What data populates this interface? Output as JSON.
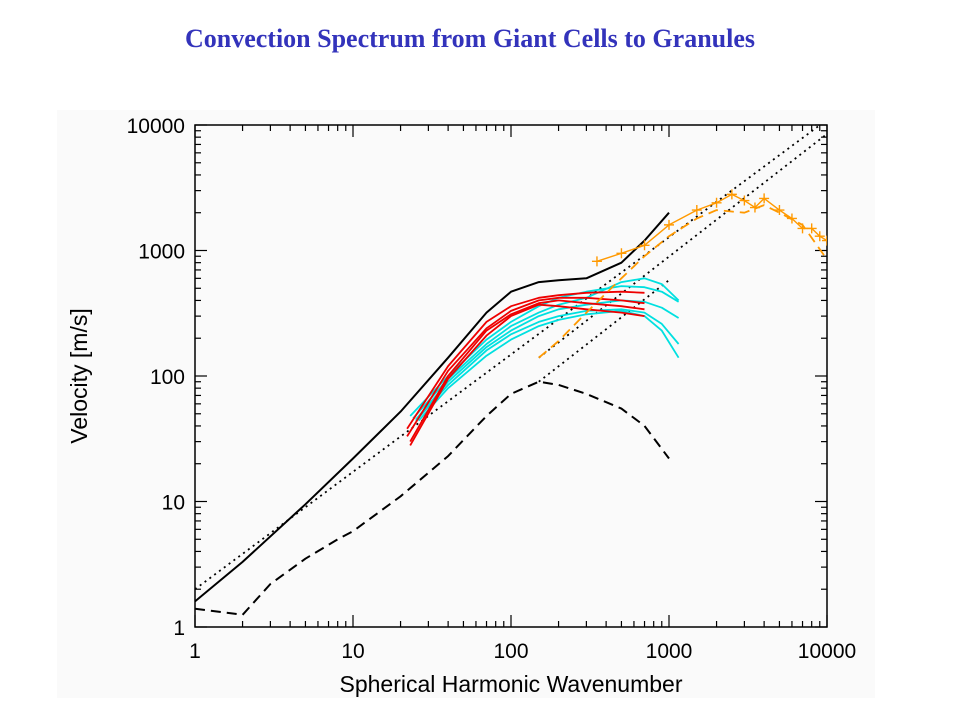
{
  "slide": {
    "title": "Convection Spectrum from Giant Cells to Granules"
  },
  "chart_data": {
    "type": "line",
    "title": "",
    "xlabel": "Spherical Harmonic Wavenumber",
    "ylabel": "Velocity [m/s]",
    "xscale": "log",
    "yscale": "log",
    "xlim": [
      1,
      10000
    ],
    "ylim": [
      1,
      10000
    ],
    "x_ticks": [
      "1",
      "10",
      "100",
      "1000",
      "10000"
    ],
    "y_ticks": [
      "1",
      "10",
      "100",
      "1000",
      "10000"
    ],
    "grid": false,
    "legend": "none",
    "series": [
      {
        "style": "solid",
        "color": "#000000",
        "x": [
          1,
          2,
          5,
          10,
          20,
          40,
          70,
          100,
          150,
          200,
          300,
          500,
          700,
          1000
        ],
        "y": [
          1.6,
          3.3,
          9.5,
          22,
          52,
          140,
          320,
          470,
          560,
          580,
          600,
          800,
          1200,
          2000
        ]
      },
      {
        "style": "dashed",
        "color": "#000000",
        "x": [
          1,
          2,
          3,
          5,
          8,
          10,
          20,
          40,
          70,
          100,
          150,
          200,
          300,
          500,
          700,
          1000
        ],
        "y": [
          1.4,
          1.25,
          2.2,
          3.5,
          5,
          5.8,
          11,
          23,
          48,
          72,
          90,
          85,
          72,
          55,
          40,
          22
        ]
      },
      {
        "style": "dotted",
        "color": "#000000",
        "x": [
          1,
          10000
        ],
        "y": [
          2,
          11000
        ]
      },
      {
        "style": "dotted",
        "color": "#000000",
        "x": [
          150,
          10000
        ],
        "y": [
          140,
          8500
        ]
      },
      {
        "style": "dotted",
        "color": "#000000",
        "x": [
          150,
          1000
        ],
        "y": [
          90,
          580
        ]
      },
      {
        "style": "solid",
        "color": "#00e0e0",
        "x": [
          23,
          40,
          70,
          100,
          150,
          200,
          300,
          500,
          700,
          900,
          1150
        ],
        "y": [
          48,
          100,
          195,
          270,
          360,
          420,
          470,
          520,
          510,
          470,
          390
        ]
      },
      {
        "style": "solid",
        "color": "#00e0e0",
        "x": [
          24,
          40,
          70,
          100,
          150,
          200,
          300,
          500,
          700,
          900,
          1150
        ],
        "y": [
          46,
          95,
          180,
          250,
          320,
          370,
          420,
          560,
          600,
          540,
          400
        ]
      },
      {
        "style": "solid",
        "color": "#00e0e0",
        "x": [
          25,
          40,
          70,
          100,
          150,
          200,
          300,
          500,
          700,
          900,
          1150
        ],
        "y": [
          45,
          90,
          170,
          230,
          300,
          340,
          370,
          400,
          390,
          350,
          290
        ]
      },
      {
        "style": "solid",
        "color": "#00e0e0",
        "x": [
          25,
          40,
          70,
          100,
          150,
          200,
          300,
          500,
          700,
          900,
          1150
        ],
        "y": [
          44,
          85,
          160,
          215,
          270,
          300,
          330,
          340,
          320,
          260,
          180
        ]
      },
      {
        "style": "solid",
        "color": "#00e0e0",
        "x": [
          26,
          40,
          70,
          100,
          150,
          200,
          300,
          500,
          700,
          900,
          1150
        ],
        "y": [
          44,
          80,
          145,
          195,
          250,
          280,
          310,
          330,
          300,
          230,
          140
        ]
      },
      {
        "style": "solid",
        "color": "#ee0000",
        "x": [
          22,
          40,
          70,
          100,
          150,
          200,
          300,
          500,
          700
        ],
        "y": [
          38,
          120,
          270,
          360,
          420,
          440,
          460,
          470,
          460
        ]
      },
      {
        "style": "solid",
        "color": "#ee0000",
        "x": [
          22,
          40,
          70,
          100,
          150,
          200,
          300,
          500,
          700
        ],
        "y": [
          33,
          110,
          240,
          330,
          400,
          420,
          420,
          400,
          380
        ]
      },
      {
        "style": "solid",
        "color": "#ee0000",
        "x": [
          23,
          40,
          70,
          100,
          150,
          200,
          300,
          500,
          700
        ],
        "y": [
          30,
          100,
          230,
          310,
          380,
          400,
          380,
          360,
          340
        ]
      },
      {
        "style": "solid",
        "color": "#ee0000",
        "x": [
          23,
          40,
          70,
          100,
          150,
          200,
          300,
          500,
          700
        ],
        "y": [
          28,
          95,
          210,
          300,
          370,
          360,
          340,
          320,
          300
        ]
      },
      {
        "style": "solid-plus",
        "color": "#ff9900",
        "x": [
          350,
          500,
          700,
          1000,
          1500,
          2000,
          2500,
          3000,
          3500,
          4000,
          5000,
          6000,
          7000,
          8000,
          9000,
          10000
        ],
        "y": [
          820,
          950,
          1100,
          1600,
          2100,
          2400,
          2800,
          2500,
          2200,
          2600,
          2100,
          1800,
          1500,
          1500,
          1300,
          1200
        ]
      },
      {
        "style": "dashed",
        "color": "#ff9900",
        "x": [
          150,
          200,
          300,
          500,
          700,
          1000,
          1500,
          2000,
          3000,
          4000,
          5000,
          7000,
          10000
        ],
        "y": [
          140,
          190,
          320,
          600,
          900,
          1300,
          1800,
          2100,
          2000,
          2300,
          2000,
          1600,
          850
        ]
      }
    ]
  }
}
